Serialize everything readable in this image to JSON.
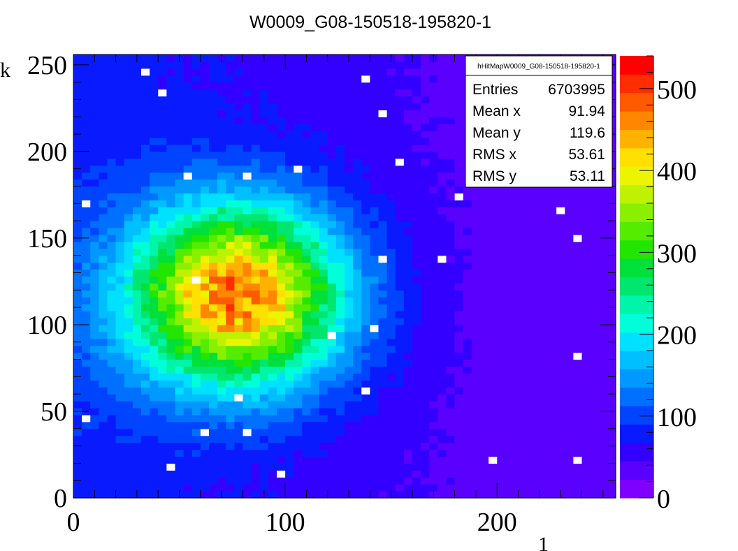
{
  "chart_data": {
    "type": "heatmap",
    "title": "W0009_G08-150518-195820-1",
    "xlabel": "",
    "ylabel": "",
    "xlim": [
      0,
      256
    ],
    "ylim": [
      0,
      256
    ],
    "x_ticks": [
      "0",
      "100",
      "200"
    ],
    "y_ticks": [
      "0",
      "50",
      "100",
      "150",
      "200",
      "250"
    ],
    "z_range": [
      0,
      540
    ],
    "z_ticks": [
      "0",
      "100",
      "200",
      "300",
      "400",
      "500"
    ],
    "palette": [
      "#7f00ff",
      "#5a00ff",
      "#3300ff",
      "#0a1aff",
      "#0044ff",
      "#0070ff",
      "#0099ff",
      "#00bfff",
      "#00e0ff",
      "#00ffd9",
      "#00f5a8",
      "#00e66e",
      "#00e03a",
      "#22e600",
      "#55ec00",
      "#8af000",
      "#bff200",
      "#ecf500",
      "#ffe000",
      "#ffb300",
      "#ff8700",
      "#ff5a00",
      "#ff2d00",
      "#ff0000"
    ],
    "distribution": {
      "center_x": 77,
      "center_y": 117,
      "sigma_x": 36,
      "sigma_y": 37,
      "peak": 470,
      "background_left": 80,
      "background_right": 25
    },
    "stats_box": {
      "name": "hHitMapW0009_G08-150518-195820-1",
      "rows": [
        {
          "label": "Entries",
          "value": "6703995"
        },
        {
          "label": "Mean x",
          "value": "91.94"
        },
        {
          "label": "Mean y",
          "value": "119.6"
        },
        {
          "label": "RMS x",
          "value": "53.61"
        },
        {
          "label": "RMS y",
          "value": "53.11"
        }
      ]
    },
    "grid": false,
    "legend": "none"
  }
}
